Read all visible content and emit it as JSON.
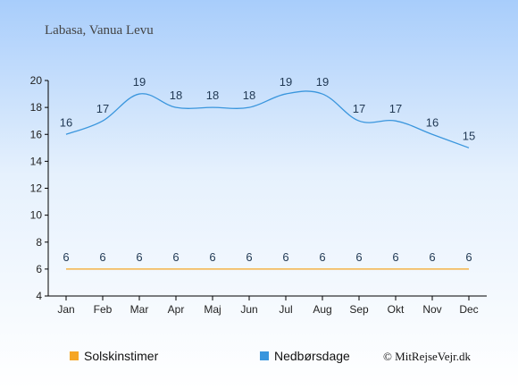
{
  "chart_data": {
    "type": "line",
    "title": "Labasa, Vanua Levu",
    "categories": [
      "Jan",
      "Feb",
      "Mar",
      "Apr",
      "Maj",
      "Jun",
      "Jul",
      "Aug",
      "Sep",
      "Okt",
      "Nov",
      "Dec"
    ],
    "series": [
      {
        "name": "Solskinstimer",
        "color": "#f5a623",
        "values": [
          6,
          6,
          6,
          6,
          6,
          6,
          6,
          6,
          6,
          6,
          6,
          6
        ]
      },
      {
        "name": "Nedbørsdage",
        "color": "#3a96dd",
        "values": [
          16,
          17,
          19,
          18,
          18,
          18,
          19,
          19,
          17,
          17,
          16,
          15
        ]
      }
    ],
    "ylim": [
      4,
      20
    ],
    "yticks": [
      4,
      6,
      8,
      10,
      12,
      14,
      16,
      18,
      20
    ],
    "grid": false,
    "legend_position": "bottom-left",
    "credit": "© MitRejseVejr.dk"
  }
}
